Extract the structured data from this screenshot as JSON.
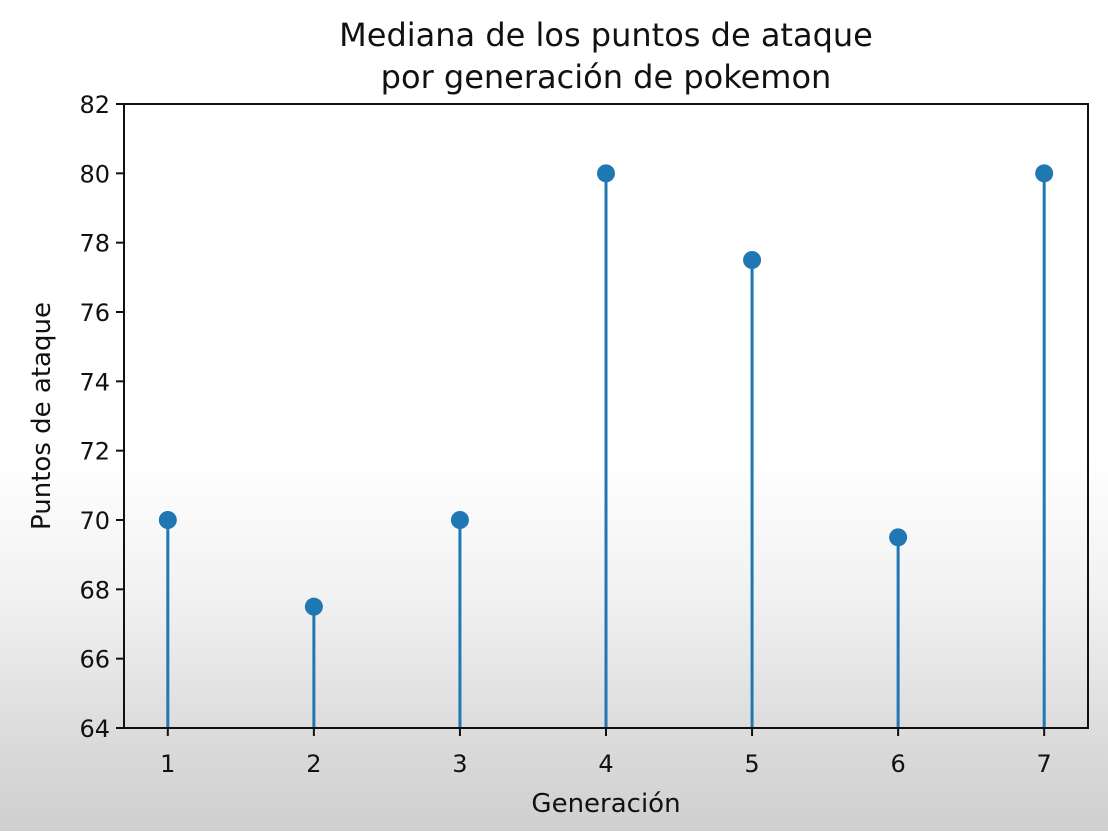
{
  "chart_data": {
    "type": "stem",
    "title_lines": [
      "Mediana de los puntos de ataque",
      "por generación de pokemon"
    ],
    "xlabel": "Generación",
    "ylabel": "Puntos de ataque",
    "x": [
      1,
      2,
      3,
      4,
      5,
      6,
      7
    ],
    "values": [
      70,
      67.5,
      70,
      80,
      77.5,
      69.5,
      80
    ],
    "xlim": [
      0.7,
      7.3
    ],
    "ylim": [
      64,
      82
    ],
    "xticks": [
      1,
      2,
      3,
      4,
      5,
      6,
      7
    ],
    "yticks": [
      64,
      66,
      68,
      70,
      72,
      74,
      76,
      78,
      80,
      82
    ],
    "grid": false,
    "color": "#1f77b4"
  }
}
